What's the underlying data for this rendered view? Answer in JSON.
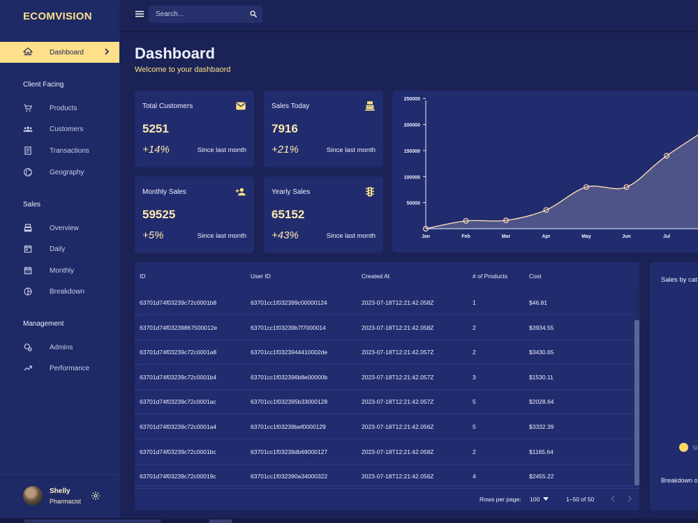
{
  "sidebar": {
    "brand": "ECOMVISION",
    "active_item": "Dashboard",
    "sections": [
      {
        "title": "Client Facing",
        "items": [
          "Products",
          "Customers",
          "Transactions",
          "Geography"
        ]
      },
      {
        "title": "Sales",
        "items": [
          "Overview",
          "Daily",
          "Monthly",
          "Breakdown"
        ]
      },
      {
        "title": "Management",
        "items": [
          "Admins",
          "Performance"
        ]
      }
    ],
    "user": {
      "name": "Shelly",
      "role": "Pharmacist"
    }
  },
  "topbar": {
    "search_placeholder": "Search..."
  },
  "header": {
    "title": "Dashboard",
    "subtitle": "Welcome to your dashbaord"
  },
  "stats": [
    {
      "title": "Total Customers",
      "value": "5251",
      "change": "+14%",
      "since": "Since last month",
      "icon": "email-icon"
    },
    {
      "title": "Sales Today",
      "value": "7916",
      "change": "+21%",
      "since": "Since last month",
      "icon": "point-of-sale-icon"
    },
    {
      "title": "Monthly Sales",
      "value": "59525",
      "change": "+5%",
      "since": "Since last month",
      "icon": "person-add-icon"
    },
    {
      "title": "Yearly Sales",
      "value": "65152",
      "change": "+43%",
      "since": "Since last month",
      "icon": "traffic-icon"
    }
  ],
  "chart_data": {
    "type": "area",
    "categories": [
      "Jan",
      "Feb",
      "Mar",
      "Apr",
      "May",
      "Jun",
      "Jul"
    ],
    "values": [
      0,
      15000,
      16000,
      36000,
      80000,
      80000,
      140000
    ],
    "y_ticks": [
      50000,
      100000,
      150000,
      200000,
      250000
    ],
    "ylim": [
      0,
      265000
    ],
    "grid": false,
    "colors": {
      "line": "#ffd9b8",
      "fill": "#5d6190",
      "marker": "#ffd9b8"
    }
  },
  "table": {
    "headers": [
      "ID",
      "User ID",
      "Created At",
      "# of Products",
      "Cost"
    ],
    "rows": [
      [
        "63701d74f03239c72c0001b8",
        "63701cc1f032399c00000124",
        "2023-07-18T12:21:42.058Z",
        "1",
        "$46.81"
      ],
      [
        "63701d74f03239867500012e",
        "63701cc1f03239b7f7000014",
        "2023-07-18T12:21:42.058Z",
        "2",
        "$3934.55"
      ],
      [
        "63701d74f03239c72c0001a8",
        "63701cc1f0323944410002de",
        "2023-07-18T12:21:42.057Z",
        "2",
        "$3430.65"
      ],
      [
        "63701d74f03239c72c0001b4",
        "63701cc1f032396b8e00000b",
        "2023-07-18T12:21:42.057Z",
        "3",
        "$1530.11"
      ],
      [
        "63701d74f03239c72c0001ac",
        "63701cc1f032395b33000128",
        "2023-07-18T12:21:42.057Z",
        "5",
        "$2028.64"
      ],
      [
        "63701d74f03239c72c0001a4",
        "63701cc1f03239bef0000129",
        "2023-07-18T12:21:42.056Z",
        "5",
        "$3332.39"
      ],
      [
        "63701d74f03239c72c0001bc",
        "63701cc1f03239db69000127",
        "2023-07-18T12:21:42.058Z",
        "2",
        "$1165.64"
      ],
      [
        "63701d74f03239c72c00019c",
        "63701cc1f032390a34000322",
        "2023-07-18T12:21:42.056Z",
        "4",
        "$2455.22"
      ]
    ],
    "rows_per_page_label": "Rows per page:",
    "rows_per_page": "100",
    "range": "1–50 of 50"
  },
  "category_card": {
    "title": "Sales by cat",
    "legend_item": "St",
    "description": "Breakdown o this year and"
  },
  "colors": {
    "background": "#1b2356",
    "panel": "#212c6e",
    "accent": "#ffe08a"
  }
}
